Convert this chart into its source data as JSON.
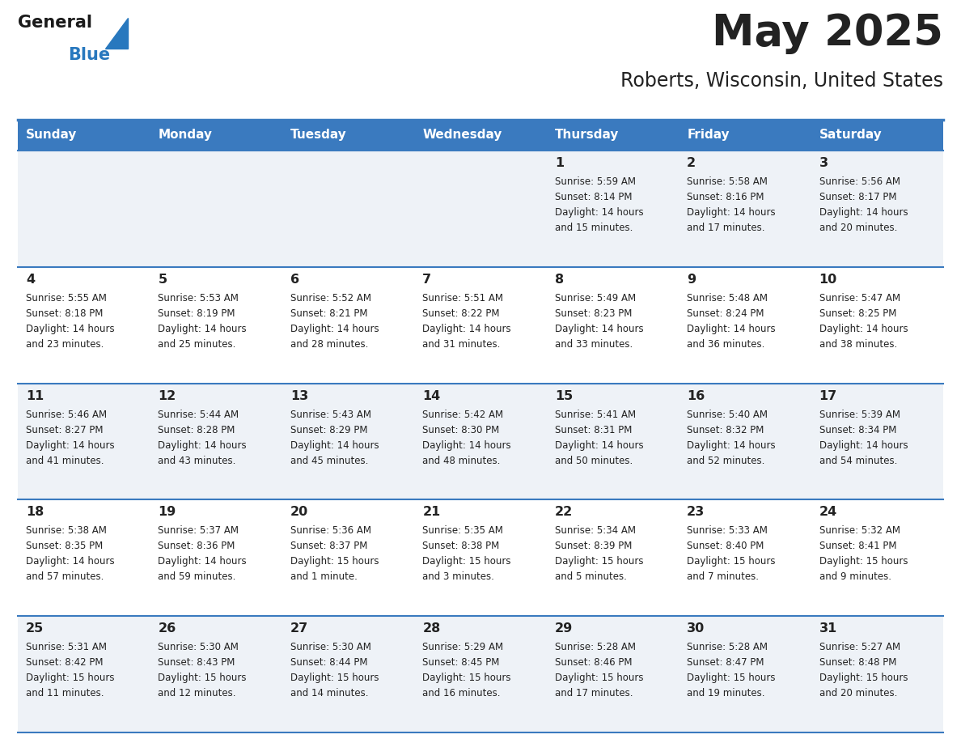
{
  "title": "May 2025",
  "subtitle": "Roberts, Wisconsin, United States",
  "days_of_week": [
    "Sunday",
    "Monday",
    "Tuesday",
    "Wednesday",
    "Thursday",
    "Friday",
    "Saturday"
  ],
  "header_bg": "#3a7abf",
  "header_text": "#ffffff",
  "row_bg_odd": "#eef2f7",
  "row_bg_even": "#ffffff",
  "divider_color": "#3a7abf",
  "text_color": "#222222",
  "logo_general_color": "#1a1a1a",
  "logo_blue_color": "#2878be",
  "calendar_data": [
    [
      null,
      null,
      null,
      null,
      {
        "day": 1,
        "sunrise": "5:59 AM",
        "sunset": "8:14 PM",
        "daylight": "14 hours",
        "daylight2": "and 15 minutes."
      },
      {
        "day": 2,
        "sunrise": "5:58 AM",
        "sunset": "8:16 PM",
        "daylight": "14 hours",
        "daylight2": "and 17 minutes."
      },
      {
        "day": 3,
        "sunrise": "5:56 AM",
        "sunset": "8:17 PM",
        "daylight": "14 hours",
        "daylight2": "and 20 minutes."
      }
    ],
    [
      {
        "day": 4,
        "sunrise": "5:55 AM",
        "sunset": "8:18 PM",
        "daylight": "14 hours",
        "daylight2": "and 23 minutes."
      },
      {
        "day": 5,
        "sunrise": "5:53 AM",
        "sunset": "8:19 PM",
        "daylight": "14 hours",
        "daylight2": "and 25 minutes."
      },
      {
        "day": 6,
        "sunrise": "5:52 AM",
        "sunset": "8:21 PM",
        "daylight": "14 hours",
        "daylight2": "and 28 minutes."
      },
      {
        "day": 7,
        "sunrise": "5:51 AM",
        "sunset": "8:22 PM",
        "daylight": "14 hours",
        "daylight2": "and 31 minutes."
      },
      {
        "day": 8,
        "sunrise": "5:49 AM",
        "sunset": "8:23 PM",
        "daylight": "14 hours",
        "daylight2": "and 33 minutes."
      },
      {
        "day": 9,
        "sunrise": "5:48 AM",
        "sunset": "8:24 PM",
        "daylight": "14 hours",
        "daylight2": "and 36 minutes."
      },
      {
        "day": 10,
        "sunrise": "5:47 AM",
        "sunset": "8:25 PM",
        "daylight": "14 hours",
        "daylight2": "and 38 minutes."
      }
    ],
    [
      {
        "day": 11,
        "sunrise": "5:46 AM",
        "sunset": "8:27 PM",
        "daylight": "14 hours",
        "daylight2": "and 41 minutes."
      },
      {
        "day": 12,
        "sunrise": "5:44 AM",
        "sunset": "8:28 PM",
        "daylight": "14 hours",
        "daylight2": "and 43 minutes."
      },
      {
        "day": 13,
        "sunrise": "5:43 AM",
        "sunset": "8:29 PM",
        "daylight": "14 hours",
        "daylight2": "and 45 minutes."
      },
      {
        "day": 14,
        "sunrise": "5:42 AM",
        "sunset": "8:30 PM",
        "daylight": "14 hours",
        "daylight2": "and 48 minutes."
      },
      {
        "day": 15,
        "sunrise": "5:41 AM",
        "sunset": "8:31 PM",
        "daylight": "14 hours",
        "daylight2": "and 50 minutes."
      },
      {
        "day": 16,
        "sunrise": "5:40 AM",
        "sunset": "8:32 PM",
        "daylight": "14 hours",
        "daylight2": "and 52 minutes."
      },
      {
        "day": 17,
        "sunrise": "5:39 AM",
        "sunset": "8:34 PM",
        "daylight": "14 hours",
        "daylight2": "and 54 minutes."
      }
    ],
    [
      {
        "day": 18,
        "sunrise": "5:38 AM",
        "sunset": "8:35 PM",
        "daylight": "14 hours",
        "daylight2": "and 57 minutes."
      },
      {
        "day": 19,
        "sunrise": "5:37 AM",
        "sunset": "8:36 PM",
        "daylight": "14 hours",
        "daylight2": "and 59 minutes."
      },
      {
        "day": 20,
        "sunrise": "5:36 AM",
        "sunset": "8:37 PM",
        "daylight": "15 hours",
        "daylight2": "and 1 minute."
      },
      {
        "day": 21,
        "sunrise": "5:35 AM",
        "sunset": "8:38 PM",
        "daylight": "15 hours",
        "daylight2": "and 3 minutes."
      },
      {
        "day": 22,
        "sunrise": "5:34 AM",
        "sunset": "8:39 PM",
        "daylight": "15 hours",
        "daylight2": "and 5 minutes."
      },
      {
        "day": 23,
        "sunrise": "5:33 AM",
        "sunset": "8:40 PM",
        "daylight": "15 hours",
        "daylight2": "and 7 minutes."
      },
      {
        "day": 24,
        "sunrise": "5:32 AM",
        "sunset": "8:41 PM",
        "daylight": "15 hours",
        "daylight2": "and 9 minutes."
      }
    ],
    [
      {
        "day": 25,
        "sunrise": "5:31 AM",
        "sunset": "8:42 PM",
        "daylight": "15 hours",
        "daylight2": "and 11 minutes."
      },
      {
        "day": 26,
        "sunrise": "5:30 AM",
        "sunset": "8:43 PM",
        "daylight": "15 hours",
        "daylight2": "and 12 minutes."
      },
      {
        "day": 27,
        "sunrise": "5:30 AM",
        "sunset": "8:44 PM",
        "daylight": "15 hours",
        "daylight2": "and 14 minutes."
      },
      {
        "day": 28,
        "sunrise": "5:29 AM",
        "sunset": "8:45 PM",
        "daylight": "15 hours",
        "daylight2": "and 16 minutes."
      },
      {
        "day": 29,
        "sunrise": "5:28 AM",
        "sunset": "8:46 PM",
        "daylight": "15 hours",
        "daylight2": "and 17 minutes."
      },
      {
        "day": 30,
        "sunrise": "5:28 AM",
        "sunset": "8:47 PM",
        "daylight": "15 hours",
        "daylight2": "and 19 minutes."
      },
      {
        "day": 31,
        "sunrise": "5:27 AM",
        "sunset": "8:48 PM",
        "daylight": "15 hours",
        "daylight2": "and 20 minutes."
      }
    ]
  ]
}
